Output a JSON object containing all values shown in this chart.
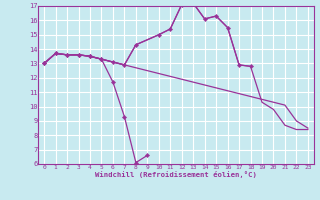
{
  "bg_color": "#c8eaf0",
  "grid_color": "#ffffff",
  "line_color": "#993399",
  "marker_color": "#993399",
  "xlabel": "Windchill (Refroidissement éolien,°C)",
  "xlim": [
    -0.5,
    23.5
  ],
  "ylim": [
    6,
    17
  ],
  "xtick_labels": [
    "0",
    "1",
    "2",
    "3",
    "4",
    "5",
    "6",
    "7",
    "8",
    "9",
    "10",
    "11",
    "12",
    "13",
    "14",
    "15",
    "16",
    "17",
    "18",
    "19",
    "20",
    "21",
    "22",
    "23"
  ],
  "xtick_vals": [
    0,
    1,
    2,
    3,
    4,
    5,
    6,
    7,
    8,
    9,
    10,
    11,
    12,
    13,
    14,
    15,
    16,
    17,
    18,
    19,
    20,
    21,
    22,
    23
  ],
  "ytick_vals": [
    6,
    7,
    8,
    9,
    10,
    11,
    12,
    13,
    14,
    15,
    16,
    17
  ],
  "s_drop_x": [
    0,
    1,
    2,
    3,
    4,
    5,
    6,
    7,
    8,
    9
  ],
  "s_drop_y": [
    13.0,
    13.7,
    13.6,
    13.6,
    13.5,
    13.3,
    11.7,
    9.3,
    6.1,
    6.6
  ],
  "s_flat_x": [
    0,
    1,
    2,
    3,
    4,
    5,
    6,
    7,
    8,
    9,
    10,
    11,
    12,
    13,
    14,
    15,
    16,
    17,
    18,
    19,
    20,
    21,
    22,
    23
  ],
  "s_flat_y": [
    13.0,
    13.7,
    13.6,
    13.6,
    13.5,
    13.3,
    13.1,
    12.9,
    12.7,
    12.5,
    12.3,
    12.1,
    11.9,
    11.7,
    11.5,
    11.3,
    11.1,
    10.9,
    10.7,
    10.5,
    10.3,
    10.1,
    9.0,
    8.5
  ],
  "s_peak_x": [
    0,
    1,
    2,
    3,
    4,
    5,
    6,
    7,
    8,
    10,
    11,
    12,
    13,
    14,
    15,
    16,
    17,
    18
  ],
  "s_peak_y": [
    13.0,
    13.7,
    13.6,
    13.6,
    13.5,
    13.3,
    13.1,
    12.9,
    14.3,
    15.0,
    15.4,
    17.1,
    17.2,
    16.1,
    16.3,
    15.5,
    12.9,
    12.8
  ],
  "s_full_x": [
    0,
    1,
    2,
    3,
    4,
    5,
    6,
    7,
    8,
    10,
    11,
    12,
    13,
    14,
    15,
    16,
    17,
    18,
    19,
    20,
    21,
    22,
    23
  ],
  "s_full_y": [
    13.0,
    13.7,
    13.6,
    13.6,
    13.5,
    13.3,
    13.1,
    12.9,
    14.3,
    15.0,
    15.4,
    17.1,
    17.2,
    16.1,
    16.3,
    15.5,
    12.9,
    12.8,
    10.3,
    9.8,
    8.7,
    8.4,
    8.4
  ]
}
